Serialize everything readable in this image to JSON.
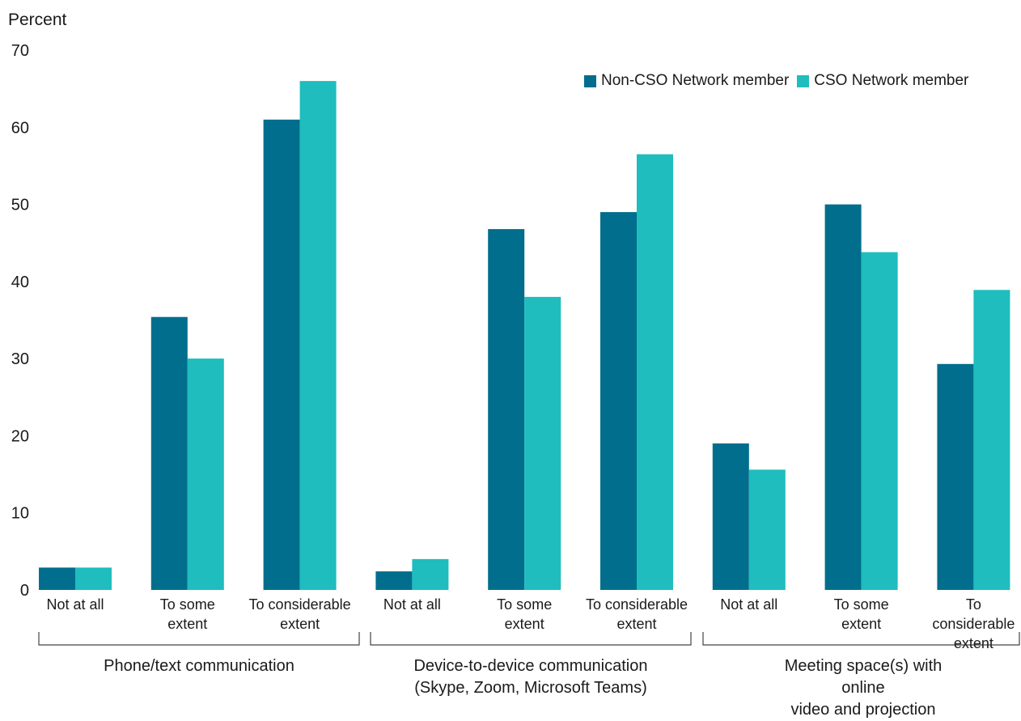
{
  "chart_data": {
    "type": "bar",
    "ylabel": "Percent",
    "ylim": [
      0,
      70
    ],
    "yticks": [
      0,
      10,
      20,
      30,
      40,
      50,
      60,
      70
    ],
    "grid": false,
    "legend_position": "top-right",
    "groups": [
      {
        "label": "Phone/text communication",
        "categories": [
          "Not at all",
          "To some\nextent",
          "To considerable\nextent"
        ]
      },
      {
        "label": "Device-to-device communication\n(Skype, Zoom, Microsoft Teams)",
        "categories": [
          "Not at all",
          "To some\nextent",
          "To considerable\nextent"
        ]
      },
      {
        "label": "Meeting space(s) with online\nvideo and projection",
        "categories": [
          "Not at all",
          "To some\nextent",
          "To considerable\nextent"
        ]
      }
    ],
    "series": [
      {
        "name": "Non-CSO Network member",
        "color": "#006e8c",
        "values": [
          2.9,
          35.4,
          61.0,
          2.4,
          46.8,
          49.0,
          19.0,
          50.0,
          29.3
        ]
      },
      {
        "name": "CSO Network member",
        "color": "#1fbdbd",
        "values": [
          2.9,
          30.0,
          66.0,
          4.0,
          38.0,
          56.5,
          15.6,
          43.8,
          38.9
        ]
      }
    ]
  }
}
